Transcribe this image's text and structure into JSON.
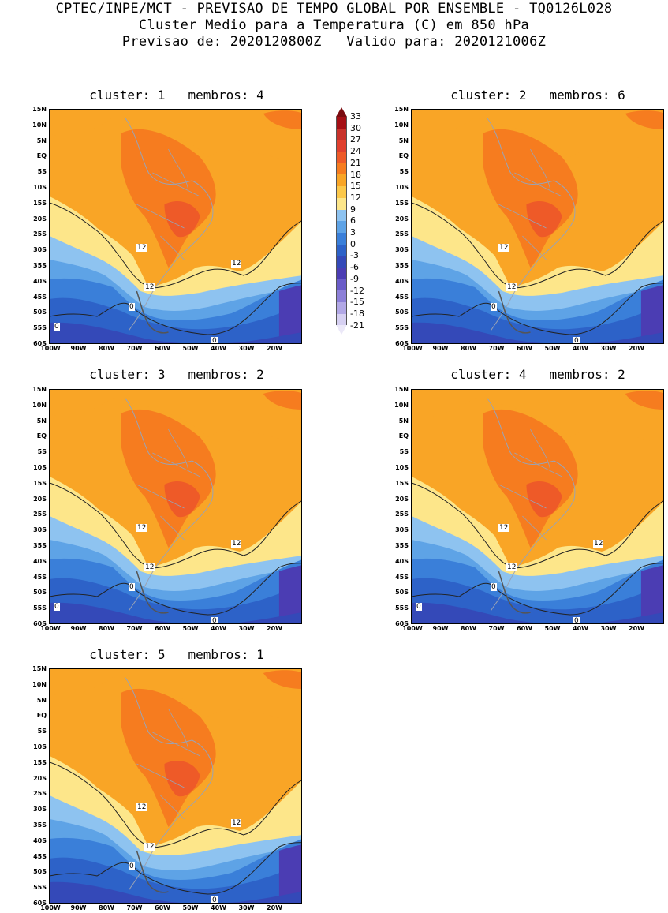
{
  "header": {
    "line1": "CPTEC/INPE/MCT - PREVISAO DE TEMPO GLOBAL POR ENSEMBLE - TQ0126L028",
    "line2": "Cluster Medio para a Temperatura (C) em 850 hPa",
    "line3": "Previsao de: 2020120800Z   Valido para: 2020121006Z"
  },
  "axes": {
    "lat_labels": [
      "15N",
      "10N",
      "5N",
      "EQ",
      "5S",
      "10S",
      "15S",
      "20S",
      "25S",
      "30S",
      "35S",
      "40S",
      "45S",
      "50S",
      "55S",
      "60S"
    ],
    "lon_labels": [
      "100W",
      "90W",
      "80W",
      "70W",
      "60W",
      "50W",
      "40W",
      "30W",
      "20W"
    ]
  },
  "panels": [
    {
      "title": "cluster: 1   membros: 4",
      "labels": {
        "c12a": "12",
        "c12b": "12",
        "c12c": "12",
        "c0a": "0",
        "c0b": "0",
        "c0c": "0"
      }
    },
    {
      "title": "cluster: 2   membros: 6",
      "labels": {
        "c12a": "12",
        "c12b": "12",
        "c0a": "0",
        "c0b": "0"
      }
    },
    {
      "title": "cluster: 3   membros: 2",
      "labels": {
        "c12a": "12",
        "c12b": "12",
        "c12c": "12",
        "c0a": "0",
        "c0b": "0",
        "c0c": "0"
      }
    },
    {
      "title": "cluster: 4   membros: 2",
      "labels": {
        "c12a": "12",
        "c12b": "12",
        "c12c": "12",
        "c0a": "0",
        "c0b": "0",
        "c0c": "0"
      }
    },
    {
      "title": "cluster: 5   membros: 1",
      "labels": {
        "c12a": "12",
        "c12b": "12",
        "c12c": "12",
        "c0a": "0",
        "c0b": "0"
      }
    }
  ],
  "colorbar": {
    "ticks": [
      "33",
      "30",
      "27",
      "24",
      "21",
      "18",
      "15",
      "12",
      "9",
      "6",
      "3",
      "0",
      "-3",
      "-6",
      "-9",
      "-12",
      "-15",
      "-18",
      "-21"
    ],
    "colors": [
      "#a50f15",
      "#c8322b",
      "#e0402e",
      "#ee5a28",
      "#f67c1f",
      "#f9a526",
      "#fcc84a",
      "#fde68a",
      "#8ec3f0",
      "#5ea3e6",
      "#3a7fd9",
      "#2d62c8",
      "#3449b8",
      "#4b3db3",
      "#6a5cc8",
      "#8d80d8",
      "#b2a8e6",
      "#d6d0f2"
    ]
  }
}
